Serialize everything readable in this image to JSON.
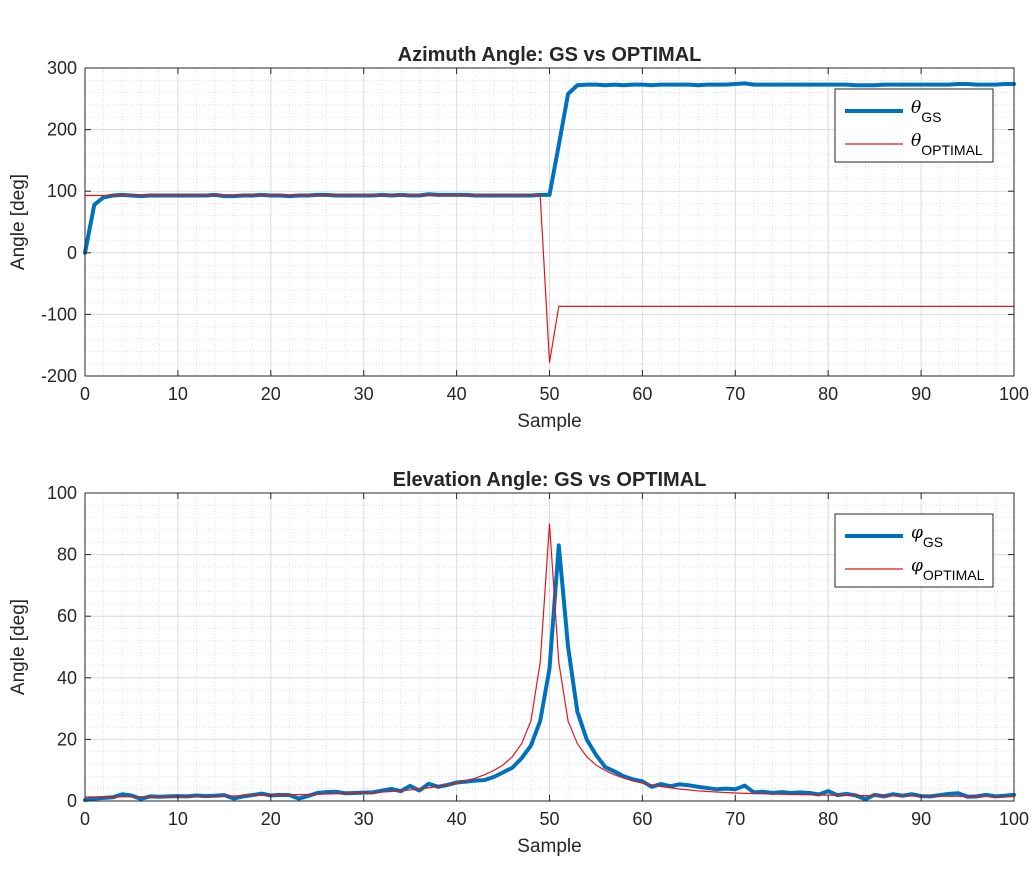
{
  "chart_data": [
    {
      "type": "line",
      "title": "Azimuth Angle: GS vs OPTIMAL",
      "xlabel": "Sample",
      "ylabel": "Angle [deg]",
      "xlim": [
        0,
        100
      ],
      "ylim": [
        -200,
        300
      ],
      "xticks": [
        "0",
        "10",
        "20",
        "30",
        "40",
        "50",
        "60",
        "70",
        "80",
        "90",
        "100"
      ],
      "yticks": [
        "-200",
        "-100",
        "0",
        "100",
        "200",
        "300"
      ],
      "grid": true,
      "minor_grid": true,
      "legend_position": "top-right",
      "series": [
        {
          "name": "θGS",
          "symbol": "θ",
          "subscript": "GS",
          "color": "#0072BD",
          "line_width": "thick",
          "x": [
            0,
            1,
            2,
            3,
            4,
            5,
            6,
            7,
            8,
            9,
            10,
            11,
            12,
            13,
            14,
            15,
            16,
            17,
            18,
            19,
            20,
            21,
            22,
            23,
            24,
            25,
            26,
            27,
            28,
            29,
            30,
            31,
            32,
            33,
            34,
            35,
            36,
            37,
            38,
            39,
            40,
            41,
            42,
            43,
            44,
            45,
            46,
            47,
            48,
            49,
            50,
            51,
            52,
            53,
            54,
            55,
            56,
            57,
            58,
            59,
            60,
            61,
            62,
            63,
            64,
            65,
            66,
            67,
            68,
            69,
            70,
            71,
            72,
            73,
            74,
            75,
            76,
            77,
            78,
            79,
            80,
            81,
            82,
            83,
            84,
            85,
            86,
            87,
            88,
            89,
            90,
            91,
            92,
            93,
            94,
            95,
            96,
            97,
            98,
            99,
            100
          ],
          "y": [
            0,
            78,
            90,
            93,
            94,
            93,
            92,
            93,
            93,
            93,
            93,
            93,
            93,
            93,
            94,
            92,
            92,
            93,
            93,
            94,
            93,
            93,
            92,
            93,
            93,
            94,
            94,
            93,
            93,
            93,
            93,
            93,
            94,
            93,
            94,
            93,
            93,
            95,
            94,
            94,
            94,
            94,
            93,
            93,
            93,
            93,
            93,
            93,
            93,
            94,
            94,
            175,
            258,
            272,
            273,
            273,
            272,
            273,
            272,
            273,
            273,
            272,
            273,
            273,
            273,
            273,
            272,
            273,
            273,
            273,
            274,
            275,
            273,
            273,
            273,
            273,
            273,
            273,
            273,
            273,
            273,
            273,
            273,
            272,
            272,
            272,
            273,
            273,
            273,
            273,
            273,
            273,
            273,
            273,
            274,
            274,
            273,
            273,
            273,
            274,
            274
          ]
        },
        {
          "name": "θOPTIMAL",
          "symbol": "θ",
          "subscript": "OPTIMAL",
          "color": "#E0171B",
          "line_width": "thin",
          "x": [
            0,
            49,
            50,
            51,
            100
          ],
          "y": [
            93,
            93,
            -178,
            -87,
            -87
          ]
        }
      ]
    },
    {
      "type": "line",
      "title": "Elevation Angle: GS vs OPTIMAL",
      "xlabel": "Sample",
      "ylabel": "Angle [deg]",
      "xlim": [
        0,
        100
      ],
      "ylim": [
        0,
        100
      ],
      "xticks": [
        "0",
        "10",
        "20",
        "30",
        "40",
        "50",
        "60",
        "70",
        "80",
        "90",
        "100"
      ],
      "yticks": [
        "0",
        "20",
        "40",
        "60",
        "80",
        "100"
      ],
      "grid": true,
      "minor_grid": true,
      "legend_position": "top-right",
      "series": [
        {
          "name": "φGS",
          "symbol": "φ",
          "subscript": "GS",
          "color": "#0072BD",
          "line_width": "thick",
          "x": [
            0,
            1,
            2,
            3,
            4,
            5,
            6,
            7,
            8,
            9,
            10,
            11,
            12,
            13,
            14,
            15,
            16,
            17,
            18,
            19,
            20,
            21,
            22,
            23,
            24,
            25,
            26,
            27,
            28,
            29,
            30,
            31,
            32,
            33,
            34,
            35,
            36,
            37,
            38,
            39,
            40,
            41,
            42,
            43,
            44,
            45,
            46,
            47,
            48,
            49,
            50,
            51,
            52,
            53,
            54,
            55,
            56,
            57,
            58,
            59,
            60,
            61,
            62,
            63,
            64,
            65,
            66,
            67,
            68,
            69,
            70,
            71,
            72,
            73,
            74,
            75,
            76,
            77,
            78,
            79,
            80,
            81,
            82,
            83,
            84,
            85,
            86,
            87,
            88,
            89,
            90,
            91,
            92,
            93,
            94,
            95,
            96,
            97,
            98,
            99,
            100
          ],
          "y": [
            0.3,
            0.8,
            1.0,
            1.2,
            2.2,
            1.8,
            0.7,
            1.5,
            1.4,
            1.5,
            1.6,
            1.5,
            1.8,
            1.6,
            1.7,
            1.9,
            0.8,
            1.5,
            1.9,
            2.4,
            1.8,
            2.0,
            1.9,
            0.8,
            1.6,
            2.6,
            2.9,
            3.0,
            2.5,
            2.6,
            2.7,
            2.8,
            3.4,
            3.9,
            3.2,
            4.9,
            3.4,
            5.6,
            4.6,
            5.2,
            6.0,
            6.3,
            6.6,
            6.8,
            7.8,
            9.3,
            10.8,
            13.9,
            18.0,
            26.0,
            43.0,
            83.0,
            50.0,
            29.0,
            20.0,
            15.0,
            11.0,
            9.6,
            8.0,
            7.0,
            6.4,
            4.6,
            5.5,
            4.8,
            5.4,
            5.1,
            4.6,
            4.2,
            3.8,
            4.0,
            3.8,
            5.0,
            2.8,
            3.0,
            2.6,
            2.9,
            2.6,
            2.8,
            2.6,
            2.1,
            3.2,
            1.9,
            2.3,
            1.8,
            0.6,
            2.0,
            1.5,
            2.2,
            1.7,
            2.2,
            1.6,
            1.5,
            1.9,
            2.3,
            2.5,
            1.4,
            1.5,
            2.0,
            1.5,
            1.7,
            2.0
          ]
        },
        {
          "name": "φOPTIMAL",
          "symbol": "φ",
          "subscript": "OPTIMAL",
          "color": "#E0171B",
          "line_width": "thin",
          "x": [
            0,
            5,
            10,
            15,
            20,
            25,
            30,
            32,
            34,
            36,
            38,
            40,
            42,
            43,
            44,
            45,
            46,
            47,
            48,
            49,
            50,
            51,
            52,
            53,
            54,
            55,
            56,
            57,
            58,
            59,
            60,
            62,
            64,
            66,
            68,
            70,
            72,
            75,
            80,
            85,
            90,
            95,
            100
          ],
          "y": [
            1.3,
            1.4,
            1.5,
            1.6,
            1.9,
            2.2,
            2.6,
            2.9,
            3.3,
            3.9,
            4.7,
            5.8,
            7.4,
            8.5,
            9.9,
            11.7,
            14.4,
            18.6,
            26.0,
            45.0,
            90.0,
            45.0,
            26.0,
            18.6,
            14.4,
            11.7,
            9.9,
            8.5,
            7.4,
            6.5,
            5.8,
            4.7,
            3.9,
            3.3,
            2.9,
            2.6,
            2.4,
            2.2,
            1.9,
            1.7,
            1.6,
            1.5,
            1.4
          ]
        }
      ]
    }
  ]
}
